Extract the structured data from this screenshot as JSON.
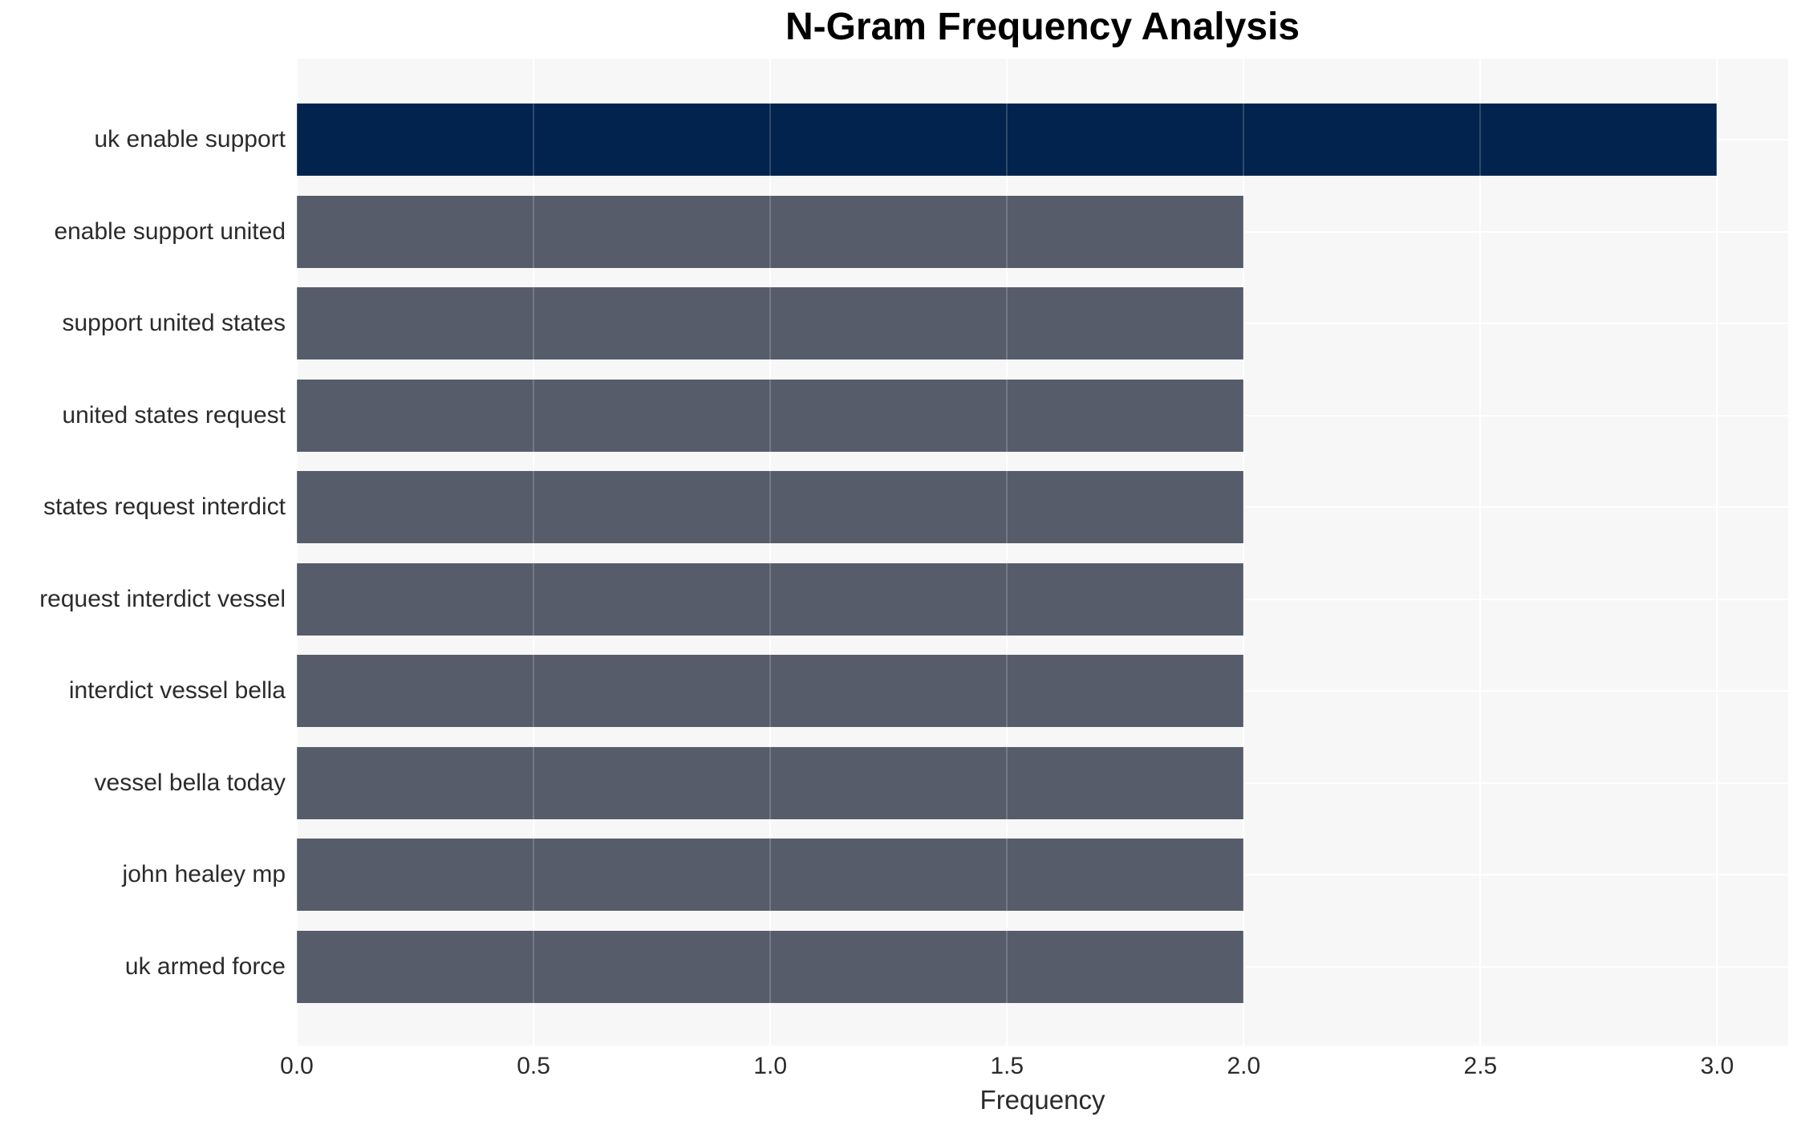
{
  "chart_data": {
    "type": "bar",
    "orientation": "horizontal",
    "title": "N-Gram Frequency Analysis",
    "xlabel": "Frequency",
    "ylabel": "",
    "categories": [
      "uk enable support",
      "enable support united",
      "support united states",
      "united states request",
      "states request interdict",
      "request interdict vessel",
      "interdict vessel bella",
      "vessel bella today",
      "john healey mp",
      "uk armed force"
    ],
    "values": [
      3,
      2,
      2,
      2,
      2,
      2,
      2,
      2,
      2,
      2
    ],
    "bar_colors": [
      "#02234E",
      "#565C6A",
      "#565C6A",
      "#565C6A",
      "#565C6A",
      "#565C6A",
      "#565C6A",
      "#565C6A",
      "#565C6A",
      "#565C6A"
    ],
    "xlim": [
      0,
      3.15
    ],
    "xticks": [
      {
        "label": "0.0",
        "value": 0.0
      },
      {
        "label": "0.5",
        "value": 0.5
      },
      {
        "label": "1.0",
        "value": 1.0
      },
      {
        "label": "1.5",
        "value": 1.5
      },
      {
        "label": "2.0",
        "value": 2.0
      },
      {
        "label": "2.5",
        "value": 2.5
      },
      {
        "label": "3.0",
        "value": 3.0
      }
    ],
    "grid": true,
    "legend": false,
    "colors": {
      "highlight_bar": "#02234E",
      "default_bar": "#565C6A",
      "plot_background": "#F7F7F7",
      "gridline": "#FFFFFF",
      "title_text": "#000000",
      "tick_text": "#2B2B2B",
      "figure_background": "#FFFFFF"
    }
  }
}
